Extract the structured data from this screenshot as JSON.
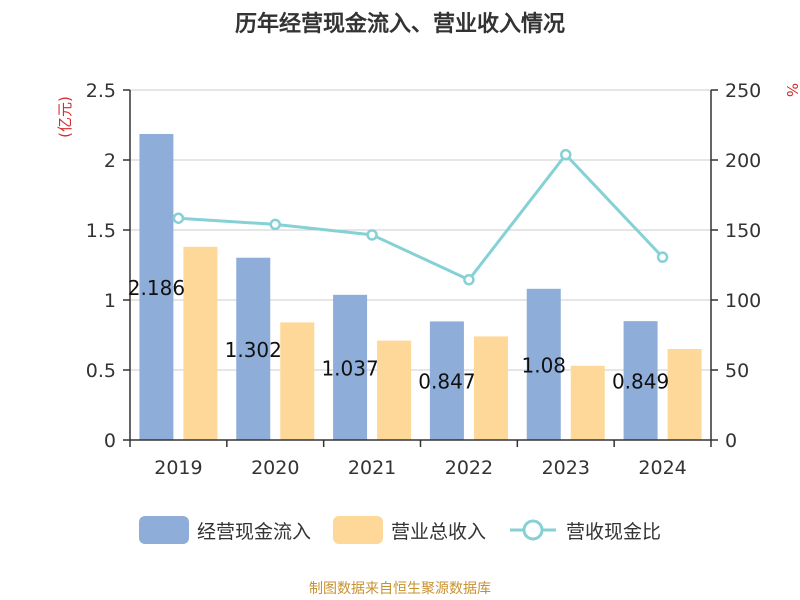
{
  "source_note": "制图数据来自恒生聚源数据库",
  "colors": {
    "cash_flow": "#8eadd9",
    "revenue": "#fdd898",
    "ratio": "#86d1d6",
    "unit_left": "#d62c2c",
    "unit_right": "#d62c2c"
  },
  "chart_data": {
    "type": "bar",
    "title": "历年经营现金流入、营业收入情况",
    "categories": [
      "2019",
      "2020",
      "2021",
      "2022",
      "2023",
      "2024"
    ],
    "series": [
      {
        "name": "经营现金流入",
        "type": "bar",
        "axis": "left",
        "values": [
          2.186,
          1.302,
          1.037,
          0.847,
          1.08,
          0.849
        ],
        "labels": [
          "2.186",
          "1.302",
          "1.037",
          "0.847",
          "1.08",
          "0.849"
        ]
      },
      {
        "name": "营业总收入",
        "type": "bar",
        "axis": "left",
        "values": [
          1.38,
          0.84,
          0.71,
          0.74,
          0.53,
          0.65
        ]
      },
      {
        "name": "营收现金比",
        "type": "line",
        "axis": "right",
        "values": [
          158.4,
          154.0,
          146.5,
          114.5,
          203.8,
          130.6
        ]
      }
    ],
    "y_left": {
      "unit": "(亿元)",
      "ylim": [
        0,
        2.5
      ],
      "ticks": [
        "0",
        "0.5",
        "1",
        "1.5",
        "2",
        "2.5"
      ]
    },
    "y_right": {
      "unit": "%",
      "ylim": [
        0,
        250
      ],
      "ticks": [
        "0",
        "50",
        "100",
        "150",
        "200",
        "250"
      ]
    },
    "grid": true,
    "legend_position": "bottom"
  }
}
